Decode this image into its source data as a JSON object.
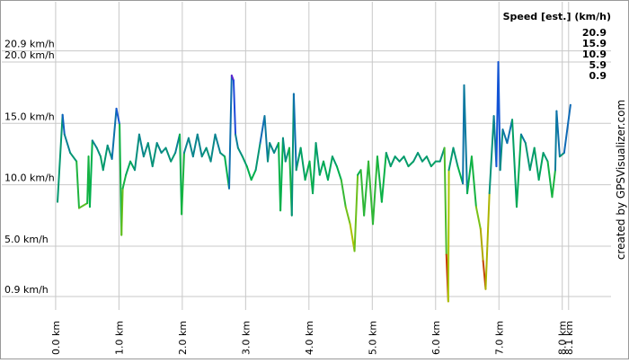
{
  "chart_data": {
    "type": "line",
    "legend": {
      "title": "Speed [est.] (km/h)",
      "values": [
        20.9,
        15.9,
        10.9,
        5.9,
        0.9
      ],
      "colors": [
        "#a000c8",
        "#1450dc",
        "#00b04c",
        "#a8c800",
        "#d00000"
      ]
    },
    "credit": "created by GPSVisualizer.com",
    "xlim": [
      -0.85,
      8.77
    ],
    "ylim": [
      -0.2,
      24.9
    ],
    "xticks": [
      {
        "value": 0,
        "label": "0.0 km"
      },
      {
        "value": 1,
        "label": "1.0 km"
      },
      {
        "value": 2,
        "label": "2.0 km"
      },
      {
        "value": 3,
        "label": "3.0 km"
      },
      {
        "value": 4,
        "label": "4.0 km"
      },
      {
        "value": 5,
        "label": "5.0 km"
      },
      {
        "value": 6,
        "label": "6.0 km"
      },
      {
        "value": 7,
        "label": "7.0 km"
      },
      {
        "value": 8,
        "label": "8.0 km"
      },
      {
        "value": 8.1,
        "label": "8.1 km"
      }
    ],
    "yticks": [
      {
        "value": 0.9,
        "label": "0.9 km/h"
      },
      {
        "value": 5,
        "label": "5.0 km/h"
      },
      {
        "value": 10,
        "label": "10.0 km/h"
      },
      {
        "value": 15,
        "label": "15.0 km/h"
      },
      {
        "value": 20,
        "label": "20.0 km/h"
      },
      {
        "value": 20.9,
        "label": "20.9 km/h"
      }
    ],
    "grid": true,
    "series": [
      {
        "x": [
          0.03,
          0.11,
          0.14,
          0.23,
          0.33,
          0.37,
          0.5,
          0.52,
          0.54,
          0.58,
          0.65,
          0.71,
          0.75,
          0.82,
          0.89,
          0.96,
          1.01,
          1.04,
          1.06,
          1.11,
          1.18,
          1.25,
          1.32,
          1.39,
          1.46,
          1.53,
          1.6,
          1.67,
          1.74,
          1.82,
          1.89,
          1.96,
          1.99,
          2.03,
          2.1,
          2.17,
          2.24,
          2.31,
          2.38,
          2.45,
          2.52,
          2.6,
          2.67,
          2.74,
          2.78,
          2.81,
          2.84,
          2.88,
          2.95,
          3.02,
          3.09,
          3.16,
          3.23,
          3.3,
          3.35,
          3.38,
          3.45,
          3.52,
          3.55,
          3.59,
          3.63,
          3.69,
          3.73,
          3.76,
          3.8,
          3.87,
          3.94,
          4.01,
          4.06,
          4.11,
          4.17,
          4.23,
          4.3,
          4.37,
          4.44,
          4.51,
          4.58,
          4.65,
          4.72,
          4.77,
          4.82,
          4.87,
          4.94,
          5.01,
          5.08,
          5.15,
          5.22,
          5.29,
          5.36,
          5.43,
          5.5,
          5.57,
          5.65,
          5.72,
          5.79,
          5.86,
          5.93,
          6.0,
          6.07,
          6.14,
          6.17,
          6.2,
          6.21,
          6.28,
          6.35,
          6.43,
          6.45,
          6.5,
          6.57,
          6.64,
          6.71,
          6.75,
          6.79,
          6.85,
          6.92,
          6.96,
          6.99,
          7.02,
          7.06,
          7.13,
          7.21,
          7.28,
          7.35,
          7.42,
          7.49,
          7.56,
          7.63,
          7.7,
          7.77,
          7.84,
          7.89,
          7.91,
          7.96,
          8.03,
          8.13
        ],
        "values": [
          8.6,
          15.7,
          14.1,
          12.6,
          11.9,
          8.1,
          8.5,
          12.3,
          8.2,
          13.6,
          13.0,
          12.3,
          11.2,
          13.2,
          12.1,
          16.2,
          14.9,
          5.9,
          9.7,
          10.8,
          11.9,
          11.2,
          14.1,
          12.3,
          13.4,
          11.5,
          13.4,
          12.6,
          13.0,
          11.9,
          12.6,
          14.1,
          7.6,
          12.6,
          13.8,
          12.3,
          14.1,
          12.3,
          13.0,
          11.9,
          14.1,
          12.6,
          12.3,
          9.7,
          18.9,
          18.5,
          14.1,
          13.0,
          12.3,
          11.5,
          10.4,
          11.2,
          13.4,
          15.6,
          11.9,
          13.4,
          12.6,
          13.4,
          7.9,
          13.8,
          11.9,
          13.0,
          7.5,
          17.4,
          11.2,
          13.0,
          10.4,
          11.9,
          9.3,
          13.4,
          10.8,
          11.9,
          10.4,
          12.3,
          11.5,
          10.4,
          8.2,
          6.8,
          4.6,
          10.8,
          11.2,
          7.5,
          11.9,
          6.8,
          12.3,
          8.6,
          12.6,
          11.5,
          12.3,
          11.9,
          12.3,
          11.5,
          11.9,
          12.6,
          11.9,
          12.3,
          11.5,
          11.9,
          11.9,
          13.0,
          4.3,
          0.5,
          11.2,
          13.0,
          11.5,
          10.1,
          18.1,
          9.3,
          12.3,
          8.2,
          6.4,
          3.8,
          1.5,
          9.3,
          15.6,
          11.5,
          20.0,
          11.2,
          14.5,
          13.4,
          15.3,
          8.2,
          14.1,
          13.4,
          11.2,
          13.0,
          10.4,
          12.6,
          11.9,
          9.0,
          11.2,
          16.0,
          12.3,
          12.6,
          16.5
        ]
      }
    ]
  }
}
